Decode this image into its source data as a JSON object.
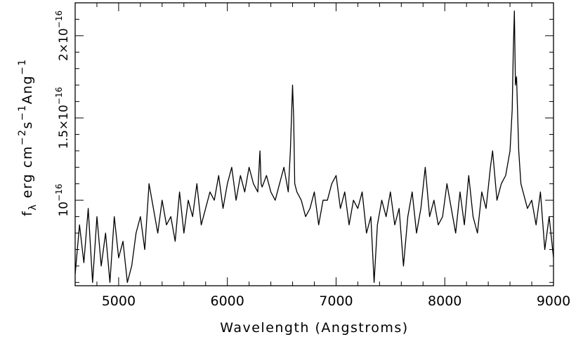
{
  "chart_data": {
    "type": "line",
    "title": "",
    "xlabel": "Wavelength (Angstroms)",
    "ylabel": {
      "base": "f",
      "sub": "λ",
      "unit_parts": [
        {
          "text": " erg cm",
          "sup": false
        },
        {
          "text": "−2",
          "sup": true
        },
        {
          "text": "s",
          "sup": false
        },
        {
          "text": "−1",
          "sup": true
        },
        {
          "text": "Ang",
          "sup": false
        },
        {
          "text": "−1",
          "sup": true
        }
      ]
    },
    "xlim": [
      4600,
      9000
    ],
    "ylim": [
      4.8e-17,
      2.2e-16
    ],
    "grid": false,
    "legend": "none",
    "x_ticks": [
      {
        "value": 5000,
        "label": "5000"
      },
      {
        "value": 6000,
        "label": "6000"
      },
      {
        "value": 7000,
        "label": "7000"
      },
      {
        "value": 8000,
        "label": "8000"
      },
      {
        "value": 9000,
        "label": "9000"
      }
    ],
    "x_minor_step": 200,
    "y_ticks": [
      {
        "value": 1e-16,
        "mantissa": "",
        "exp": "−16"
      },
      {
        "value": 1.5e-16,
        "mantissa": "1.5×10",
        "exp": "−16"
      },
      {
        "value": 2e-16,
        "mantissa": "2×10",
        "exp": "−16"
      }
    ],
    "y_minor_step": 1e-17,
    "series": [
      {
        "line_color": "#000000",
        "x": [
          4600,
          4640,
          4680,
          4720,
          4760,
          4800,
          4840,
          4880,
          4920,
          4960,
          5000,
          5040,
          5080,
          5120,
          5160,
          5200,
          5240,
          5280,
          5320,
          5360,
          5400,
          5440,
          5480,
          5520,
          5560,
          5600,
          5640,
          5680,
          5720,
          5760,
          5800,
          5840,
          5880,
          5920,
          5960,
          6000,
          6040,
          6080,
          6120,
          6160,
          6200,
          6240,
          6280,
          6300,
          6310,
          6320,
          6360,
          6400,
          6440,
          6480,
          6520,
          6560,
          6580,
          6600,
          6610,
          6620,
          6640,
          6680,
          6720,
          6760,
          6800,
          6840,
          6880,
          6920,
          6960,
          7000,
          7040,
          7080,
          7120,
          7160,
          7200,
          7240,
          7280,
          7320,
          7350,
          7380,
          7420,
          7460,
          7500,
          7540,
          7580,
          7620,
          7660,
          7700,
          7740,
          7780,
          7820,
          7860,
          7900,
          7940,
          7980,
          8020,
          8060,
          8100,
          8140,
          8180,
          8220,
          8260,
          8300,
          8340,
          8380,
          8420,
          8440,
          8480,
          8520,
          8560,
          8600,
          8620,
          8630,
          8640,
          8650,
          8660,
          8680,
          8700,
          8720,
          8760,
          8800,
          8840,
          8880,
          8920,
          8960,
          9000
        ],
        "y": [
          5.5e-17,
          8.5e-17,
          6.2e-17,
          9.5e-17,
          5e-17,
          9e-17,
          6e-17,
          8e-17,
          5e-17,
          9e-17,
          6.5e-17,
          7.5e-17,
          5e-17,
          6e-17,
          8e-17,
          9e-17,
          7e-17,
          1.1e-16,
          9.5e-17,
          8e-17,
          1e-16,
          8.5e-17,
          9e-17,
          7.5e-17,
          1.05e-16,
          8e-17,
          1e-16,
          9e-17,
          1.1e-16,
          8.5e-17,
          9.5e-17,
          1.05e-16,
          1e-16,
          1.15e-16,
          9.5e-17,
          1.1e-16,
          1.2e-16,
          1e-16,
          1.15e-16,
          1.05e-16,
          1.2e-16,
          1.1e-16,
          1.05e-16,
          1.3e-16,
          1.1e-16,
          1.08e-16,
          1.15e-16,
          1.05e-16,
          1e-16,
          1.1e-16,
          1.2e-16,
          1.05e-16,
          1.3e-16,
          1.7e-16,
          1.5e-16,
          1.1e-16,
          1.05e-16,
          1e-16,
          9e-17,
          9.5e-17,
          1.05e-16,
          8.5e-17,
          1e-16,
          1e-16,
          1.1e-16,
          1.15e-16,
          9.5e-17,
          1.05e-16,
          8.5e-17,
          1e-16,
          9.5e-17,
          1.05e-16,
          8e-17,
          9e-17,
          5e-17,
          8.5e-17,
          1e-16,
          9e-17,
          1.05e-16,
          8.5e-17,
          9.5e-17,
          6e-17,
          9e-17,
          1.05e-16,
          8e-17,
          9.5e-17,
          1.2e-16,
          9e-17,
          1e-16,
          8.5e-17,
          9e-17,
          1.1e-16,
          9.5e-17,
          8e-17,
          1.05e-16,
          8.5e-17,
          1.15e-16,
          9e-17,
          8e-17,
          1.05e-16,
          9.5e-17,
          1.2e-16,
          1.3e-16,
          1e-16,
          1.1e-16,
          1.15e-16,
          1.3e-16,
          1.55e-16,
          1.9e-16,
          2.15e-16,
          1.7e-16,
          1.75e-16,
          1.3e-16,
          1.1e-16,
          1.05e-16,
          9.5e-17,
          1e-16,
          8.5e-17,
          1.05e-16,
          7e-17,
          9e-17,
          6.5e-17
        ]
      }
    ]
  }
}
